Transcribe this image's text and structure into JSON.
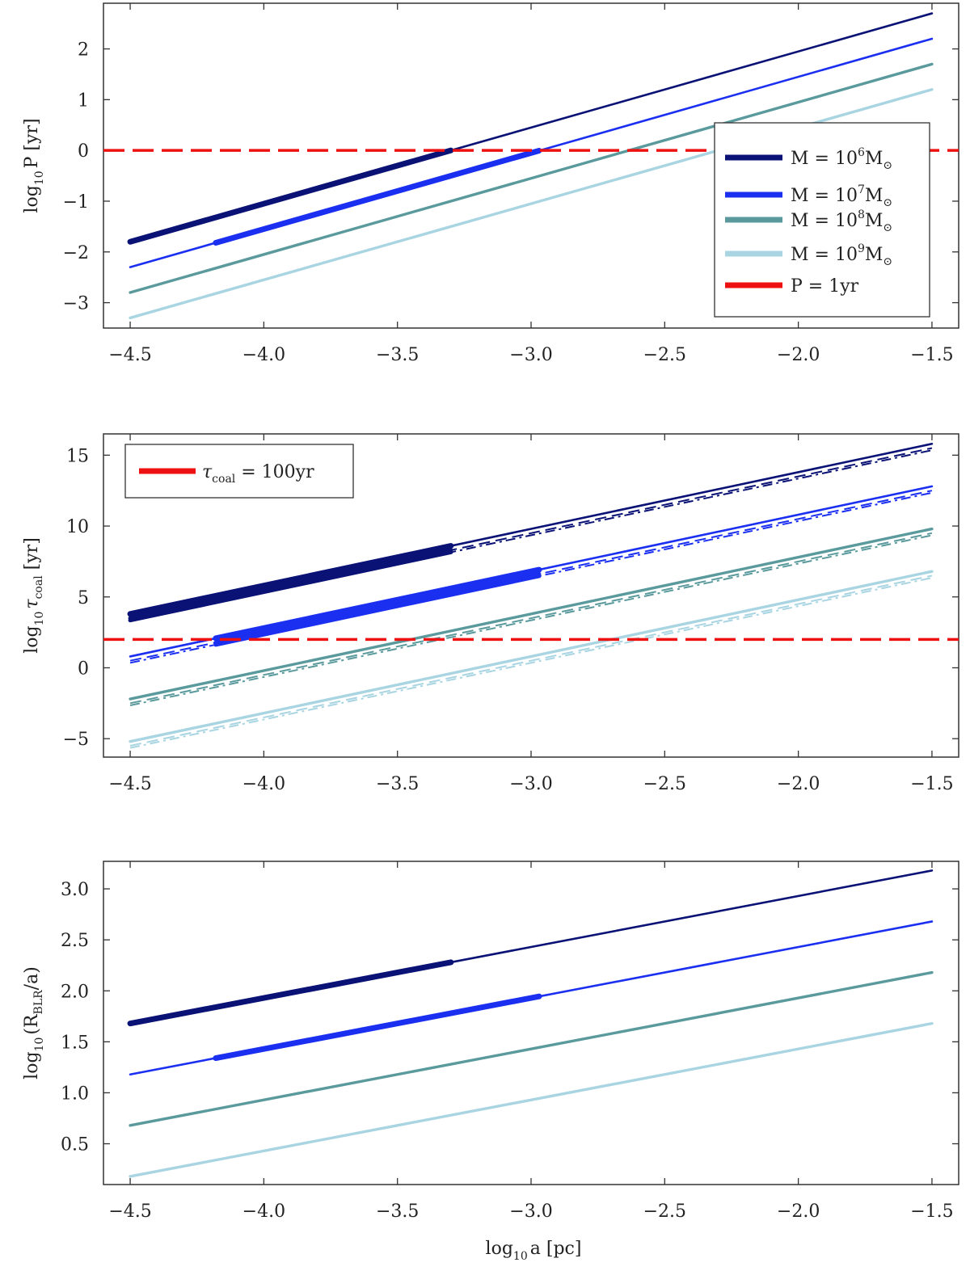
{
  "chart_data": [
    {
      "type": "line",
      "id": "period",
      "ylabel": {
        "main": "log",
        "sub": "10",
        "tail": "P [yr]"
      },
      "xlim": [
        -4.6,
        -1.4
      ],
      "ylim": [
        -3.5,
        2.9
      ],
      "xticks": [
        -4.5,
        -4.0,
        -3.5,
        -3.0,
        -2.5,
        -2.0,
        -1.5
      ],
      "xtick_labels": [
        "−4.5",
        "−4.0",
        "−3.5",
        "−3.0",
        "−2.5",
        "−2.0",
        "−1.5"
      ],
      "yticks": [
        -3,
        -2,
        -1,
        0,
        1,
        2
      ],
      "ytick_labels": [
        "−3",
        "−2",
        "−1",
        "0",
        "1",
        "2"
      ],
      "legend_position": "right",
      "series": [
        {
          "name": "M = 10^6 M☉",
          "label_base": "M = 10",
          "label_exp": "6",
          "label_unit": "M",
          "color": "#0a1275",
          "x": [
            -4.5,
            -1.5
          ],
          "y": [
            -1.8,
            2.7
          ],
          "thick_x": [
            -4.5,
            -3.3
          ]
        },
        {
          "name": "M = 10^7 M☉",
          "label_base": "M = 10",
          "label_exp": "7",
          "label_unit": "M",
          "color": "#1a2ff0",
          "x": [
            -4.5,
            -1.5
          ],
          "y": [
            -2.3,
            2.2
          ],
          "thick_x": [
            -4.18,
            -2.97
          ]
        },
        {
          "name": "M = 10^8 M☉",
          "label_base": "M = 10",
          "label_exp": "8",
          "label_unit": "M",
          "color": "#5a9a9c",
          "x": [
            -4.5,
            -1.5
          ],
          "y": [
            -2.8,
            1.7
          ],
          "thick_x": null
        },
        {
          "name": "M = 10^9 M☉",
          "label_base": "M = 10",
          "label_exp": "9",
          "label_unit": "M",
          "color": "#a9d5e2",
          "x": [
            -4.5,
            -1.5
          ],
          "y": [
            -3.3,
            1.2
          ],
          "thick_x": null
        }
      ],
      "hline": {
        "y": 0,
        "color": "#ee1111",
        "label": "P = 1yr"
      }
    },
    {
      "type": "line",
      "id": "coalescence",
      "ylabel": {
        "main": "log",
        "sub": "10",
        "tail": "τ",
        "tail_sub": "coal",
        "tail2": " [yr]"
      },
      "xlim": [
        -4.6,
        -1.4
      ],
      "ylim": [
        -6.3,
        16.5
      ],
      "xticks": [
        -4.5,
        -4.0,
        -3.5,
        -3.0,
        -2.5,
        -2.0,
        -1.5
      ],
      "xtick_labels": [
        "−4.5",
        "−4.0",
        "−3.5",
        "−3.0",
        "−2.5",
        "−2.0",
        "−1.5"
      ],
      "yticks": [
        -5,
        0,
        5,
        10,
        15
      ],
      "ytick_labels": [
        "−5",
        "0",
        "5",
        "10",
        "15"
      ],
      "legend_position": "top-left",
      "series": [
        {
          "name": "M = 10^6 M☉",
          "color": "#0a1275",
          "x": [
            -4.5,
            -1.5
          ],
          "y": [
            3.8,
            15.8
          ],
          "dash_offsets": [
            -0.3,
            -0.45
          ],
          "thick_x": [
            -4.5,
            -3.3
          ]
        },
        {
          "name": "M = 10^7 M☉",
          "color": "#1a2ff0",
          "x": [
            -4.5,
            -1.5
          ],
          "y": [
            0.8,
            12.8
          ],
          "dash_offsets": [
            -0.3,
            -0.45
          ],
          "thick_x": [
            -4.18,
            -2.97
          ]
        },
        {
          "name": "M = 10^8 M☉",
          "color": "#5a9a9c",
          "x": [
            -4.5,
            -1.5
          ],
          "y": [
            -2.2,
            9.8
          ],
          "dash_offsets": [
            -0.3,
            -0.45
          ],
          "thick_x": null
        },
        {
          "name": "M = 10^9 M☉",
          "color": "#a9d5e2",
          "x": [
            -4.5,
            -1.5
          ],
          "y": [
            -5.2,
            6.8
          ],
          "dash_offsets": [
            -0.3,
            -0.45
          ],
          "thick_x": null
        }
      ],
      "hline": {
        "y": 2,
        "color": "#ee1111",
        "label_main": "τ",
        "label_sub": "coal",
        "label_tail": " = 100yr"
      }
    },
    {
      "type": "line",
      "id": "blr-ratio",
      "ylabel": {
        "main": "log",
        "sub": "10",
        "tail": "(R",
        "tail_sub": "BLR",
        "tail2": "/a)"
      },
      "xlabel": {
        "main": "log",
        "sub": "10",
        "tail": "a [pc]"
      },
      "xlim": [
        -4.6,
        -1.4
      ],
      "ylim": [
        0.1,
        3.27
      ],
      "xticks": [
        -4.5,
        -4.0,
        -3.5,
        -3.0,
        -2.5,
        -2.0,
        -1.5
      ],
      "xtick_labels": [
        "−4.5",
        "−4.0",
        "−3.5",
        "−3.0",
        "−2.5",
        "−2.0",
        "−1.5"
      ],
      "yticks": [
        0.5,
        1.0,
        1.5,
        2.0,
        2.5,
        3.0
      ],
      "ytick_labels": [
        "0.5",
        "1.0",
        "1.5",
        "2.0",
        "2.5",
        "3.0"
      ],
      "series": [
        {
          "name": "M = 10^6 M☉",
          "color": "#0a1275",
          "x": [
            -4.5,
            -1.5
          ],
          "y": [
            1.68,
            3.18
          ],
          "thick_x": [
            -4.5,
            -3.3
          ]
        },
        {
          "name": "M = 10^7 M☉",
          "color": "#1a2ff0",
          "x": [
            -4.5,
            -1.5
          ],
          "y": [
            1.18,
            2.68
          ],
          "thick_x": [
            -4.18,
            -2.97
          ]
        },
        {
          "name": "M = 10^8 M☉",
          "color": "#5a9a9c",
          "x": [
            -4.5,
            -1.5
          ],
          "y": [
            0.68,
            2.18
          ],
          "thick_x": null
        },
        {
          "name": "M = 10^9 M☉",
          "color": "#a9d5e2",
          "x": [
            -4.5,
            -1.5
          ],
          "y": [
            0.18,
            1.68
          ],
          "thick_x": null
        }
      ]
    }
  ]
}
